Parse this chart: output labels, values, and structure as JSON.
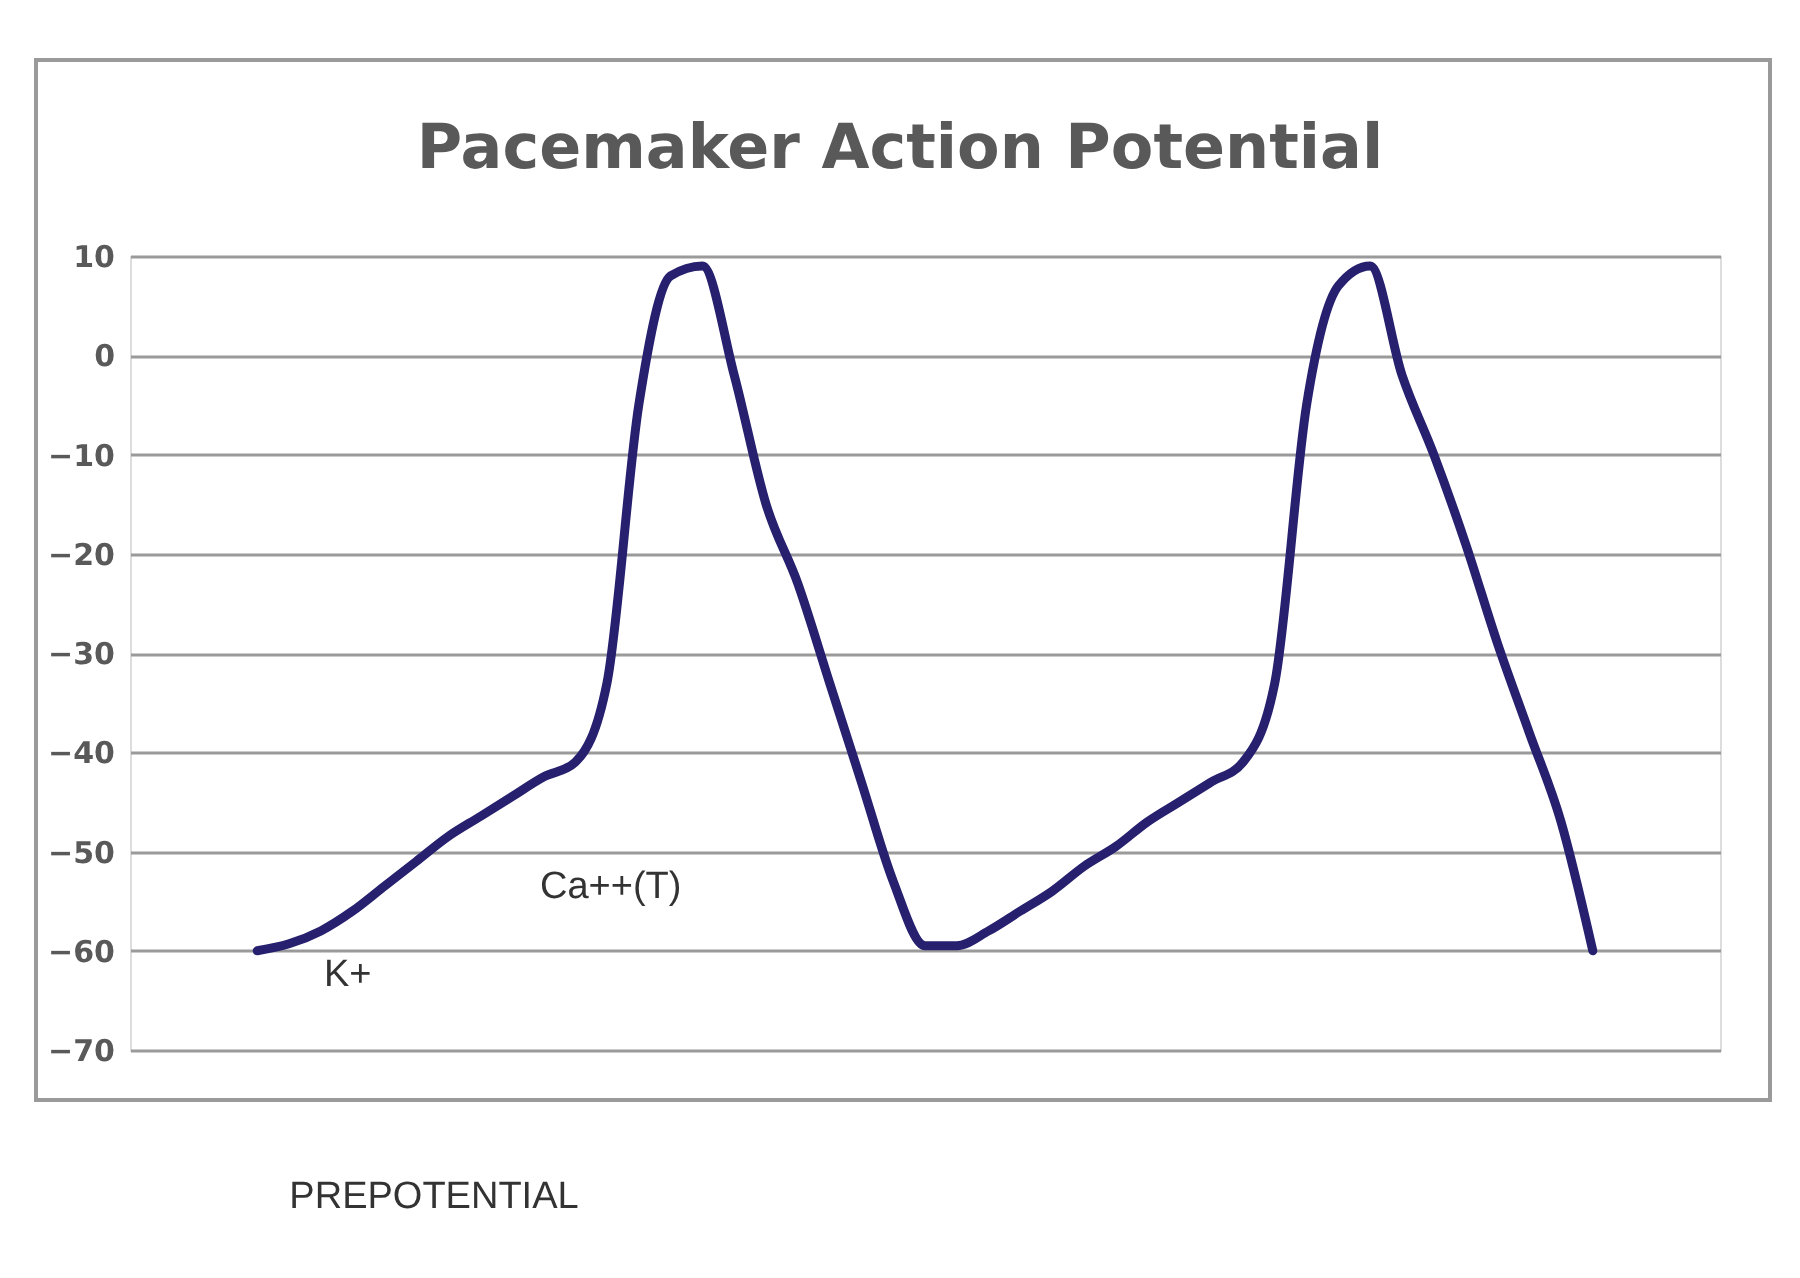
{
  "chart_data": {
    "type": "line",
    "title": "Pacemaker Action Potential",
    "categories": [
      null,
      null,
      null,
      null,
      null,
      null,
      null,
      null,
      null,
      null,
      null,
      null,
      null,
      null,
      null,
      null,
      null,
      null,
      null,
      null,
      null,
      null,
      null,
      null,
      null,
      null,
      null,
      null,
      null,
      null,
      null,
      null,
      null,
      null,
      null,
      null,
      null,
      null,
      null,
      null,
      null,
      null,
      null,
      null,
      null,
      null,
      null,
      null,
      null,
      null,
      null
    ],
    "series": [
      {
        "color": "#26206e",
        "values": [
          null,
          null,
          null,
          null,
          -60,
          -59.3,
          -58,
          -56,
          -53.5,
          -51,
          -48.5,
          -46.5,
          -44.5,
          -42.5,
          -41,
          -33,
          -5,
          8,
          9,
          -2,
          -15,
          -23,
          -33,
          -43,
          -53,
          -59.5,
          -59.5,
          -58,
          -56,
          -54,
          -51.5,
          -49.5,
          -47,
          -45,
          -43,
          -41,
          -33,
          -5,
          7,
          9,
          -2,
          -10,
          -19,
          -29,
          -38,
          -47,
          -60,
          null,
          null,
          null,
          null
        ]
      }
    ],
    "ylim": [
      -70,
      10
    ],
    "yticks": [
      -70,
      -60,
      -50,
      -40,
      -30,
      -20,
      -10,
      0,
      10
    ],
    "grid": "y",
    "tick_labels": "y",
    "marker": "none",
    "line_style": "solid",
    "annotations": [
      "K+",
      "Ca++(T)",
      "PREPOTENTIAL"
    ]
  }
}
